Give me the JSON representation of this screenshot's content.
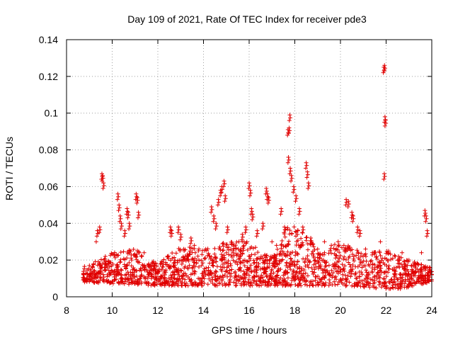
{
  "chart_data": {
    "type": "scatter",
    "title": "Day 109 of 2021, Rate Of TEC Index for receiver pde3",
    "xlabel": "GPS time / hours",
    "ylabel": "ROTI / TECUs",
    "xlim": [
      8,
      24
    ],
    "ylim": [
      0,
      0.14
    ],
    "xticks": [
      "8",
      "10",
      "12",
      "14",
      "16",
      "18",
      "20",
      "22",
      "24"
    ],
    "yticks": [
      "0",
      "0.02",
      "0.04",
      "0.06",
      "0.08",
      "0.1",
      "0.12",
      "0.14"
    ],
    "grid": true,
    "marker": "+",
    "marker_color": "#e00000",
    "series": [
      {
        "name": "pde3",
        "points": [
          [
            8.75,
            0.012
          ],
          [
            8.9,
            0.01
          ],
          [
            9.05,
            0.014
          ],
          [
            9.15,
            0.016
          ],
          [
            9.3,
            0.03
          ],
          [
            9.35,
            0.036
          ],
          [
            9.45,
            0.038
          ],
          [
            9.55,
            0.067
          ],
          [
            9.58,
            0.066
          ],
          [
            9.62,
            0.062
          ],
          [
            9.7,
            0.022
          ],
          [
            9.85,
            0.018
          ],
          [
            10.0,
            0.014
          ],
          [
            10.25,
            0.056
          ],
          [
            10.3,
            0.05
          ],
          [
            10.35,
            0.044
          ],
          [
            10.4,
            0.04
          ],
          [
            10.55,
            0.036
          ],
          [
            10.65,
            0.048
          ],
          [
            10.7,
            0.046
          ],
          [
            10.75,
            0.04
          ],
          [
            10.85,
            0.02
          ],
          [
            11.05,
            0.056
          ],
          [
            11.1,
            0.054
          ],
          [
            11.15,
            0.046
          ],
          [
            11.4,
            0.024
          ],
          [
            11.6,
            0.018
          ],
          [
            11.9,
            0.015
          ],
          [
            12.1,
            0.01
          ],
          [
            12.3,
            0.014
          ],
          [
            12.55,
            0.038
          ],
          [
            12.6,
            0.036
          ],
          [
            12.9,
            0.038
          ],
          [
            13.0,
            0.034
          ],
          [
            13.2,
            0.022
          ],
          [
            13.45,
            0.032
          ],
          [
            13.6,
            0.028
          ],
          [
            13.8,
            0.02
          ],
          [
            14.1,
            0.026
          ],
          [
            14.35,
            0.049
          ],
          [
            14.45,
            0.044
          ],
          [
            14.55,
            0.04
          ],
          [
            14.65,
            0.053
          ],
          [
            14.75,
            0.058
          ],
          [
            14.8,
            0.06
          ],
          [
            14.9,
            0.063
          ],
          [
            14.95,
            0.055
          ],
          [
            15.05,
            0.038
          ],
          [
            15.3,
            0.025
          ],
          [
            15.55,
            0.03
          ],
          [
            15.7,
            0.034
          ],
          [
            15.85,
            0.038
          ],
          [
            16.0,
            0.062
          ],
          [
            16.05,
            0.058
          ],
          [
            16.1,
            0.048
          ],
          [
            16.15,
            0.045
          ],
          [
            16.35,
            0.036
          ],
          [
            16.6,
            0.04
          ],
          [
            16.75,
            0.059
          ],
          [
            16.8,
            0.056
          ],
          [
            16.85,
            0.054
          ],
          [
            17.0,
            0.03
          ],
          [
            17.2,
            0.028
          ],
          [
            17.4,
            0.048
          ],
          [
            17.55,
            0.038
          ],
          [
            17.7,
            0.091
          ],
          [
            17.75,
            0.092
          ],
          [
            17.78,
            0.099
          ],
          [
            17.72,
            0.076
          ],
          [
            17.8,
            0.07
          ],
          [
            17.85,
            0.066
          ],
          [
            17.95,
            0.06
          ],
          [
            18.05,
            0.055
          ],
          [
            18.2,
            0.048
          ],
          [
            18.35,
            0.038
          ],
          [
            18.5,
            0.073
          ],
          [
            18.55,
            0.068
          ],
          [
            18.6,
            0.062
          ],
          [
            18.7,
            0.032
          ],
          [
            19.0,
            0.026
          ],
          [
            19.3,
            0.03
          ],
          [
            19.6,
            0.028
          ],
          [
            19.9,
            0.03
          ],
          [
            20.15,
            0.028
          ],
          [
            20.25,
            0.053
          ],
          [
            20.35,
            0.052
          ],
          [
            20.5,
            0.046
          ],
          [
            20.55,
            0.044
          ],
          [
            20.75,
            0.038
          ],
          [
            20.85,
            0.036
          ],
          [
            21.1,
            0.026
          ],
          [
            21.4,
            0.024
          ],
          [
            21.75,
            0.03
          ],
          [
            21.9,
            0.125
          ],
          [
            21.93,
            0.126
          ],
          [
            21.95,
            0.098
          ],
          [
            21.97,
            0.096
          ],
          [
            21.92,
            0.067
          ],
          [
            22.1,
            0.024
          ],
          [
            22.4,
            0.022
          ],
          [
            22.7,
            0.024
          ],
          [
            23.0,
            0.02
          ],
          [
            23.3,
            0.018
          ],
          [
            23.55,
            0.024
          ],
          [
            23.7,
            0.047
          ],
          [
            23.75,
            0.044
          ],
          [
            23.8,
            0.036
          ],
          [
            23.9,
            0.016
          ],
          [
            24.0,
            0.012
          ]
        ],
        "dense_band": {
          "description": "dense cluster of points between these bounds",
          "x_range": [
            8.7,
            24.0
          ],
          "y_low": [
            [
              8.7,
              0.008
            ],
            [
              12,
              0.006
            ],
            [
              14,
              0.006
            ],
            [
              18,
              0.006
            ],
            [
              20,
              0.006
            ],
            [
              22.5,
              0.004
            ],
            [
              24,
              0.008
            ]
          ],
          "y_high": [
            [
              8.7,
              0.016
            ],
            [
              10,
              0.024
            ],
            [
              11,
              0.026
            ],
            [
              12,
              0.018
            ],
            [
              13,
              0.028
            ],
            [
              14,
              0.026
            ],
            [
              15,
              0.03
            ],
            [
              16,
              0.03
            ],
            [
              17,
              0.022
            ],
            [
              17.7,
              0.04
            ],
            [
              18.3,
              0.04
            ],
            [
              19,
              0.024
            ],
            [
              20,
              0.03
            ],
            [
              21,
              0.024
            ],
            [
              22,
              0.026
            ],
            [
              23,
              0.02
            ],
            [
              24,
              0.016
            ]
          ]
        }
      }
    ]
  }
}
